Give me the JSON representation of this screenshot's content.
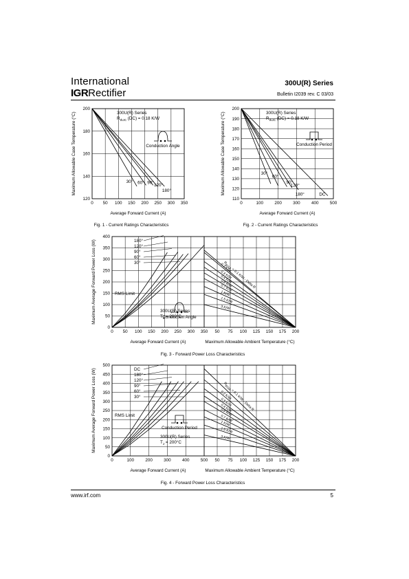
{
  "header": {
    "company_line1": "International",
    "company_logo": "IGR",
    "company_line2": "Rectifier",
    "series": "300U(R) Series",
    "bulletin": "Bulletin  I2039  rev. C  03/03"
  },
  "footer": {
    "url": "www.irf.com",
    "page": "5"
  },
  "chart_data": [
    {
      "type": "line",
      "caption": "Fig. 1 - Current Ratings Characteristics",
      "xlabel": "Average Forward Current (A)",
      "ylabel": "Maximum Allowable Case Temperature (°C)",
      "xlim": [
        0,
        350
      ],
      "ylim": [
        120,
        200
      ],
      "xticks": [
        0,
        50,
        100,
        150,
        200,
        250,
        300,
        350
      ],
      "yticks": [
        120,
        140,
        160,
        180,
        200
      ],
      "grid": true,
      "annotations": {
        "device": "300U(R) Series",
        "rth": "R",
        "rth_sub": "thJC",
        "rth_val": " (DC) = 0.18 K/W",
        "waveform": "Conduction Angle"
      },
      "series": [
        {
          "name": "30°",
          "x": [
            0,
            170
          ],
          "y": [
            200,
            131
          ]
        },
        {
          "name": "60°",
          "x": [
            0,
            205
          ],
          "y": [
            200,
            132
          ]
        },
        {
          "name": "90°",
          "x": [
            0,
            232
          ],
          "y": [
            200,
            132
          ]
        },
        {
          "name": "120°",
          "x": [
            0,
            248
          ],
          "y": [
            200,
            131
          ]
        },
        {
          "name": "180°",
          "x": [
            0,
            275
          ],
          "y": [
            200,
            131
          ]
        }
      ],
      "labels": [
        {
          "text": "30°",
          "x": 142,
          "y": 134
        },
        {
          "text": "60°",
          "x": 185,
          "y": 133
        },
        {
          "text": "90°",
          "x": 222,
          "y": 133
        },
        {
          "text": "120°",
          "x": 252,
          "y": 131
        },
        {
          "text": "180°",
          "x": 283,
          "y": 126
        }
      ]
    },
    {
      "type": "line",
      "caption": "Fig. 2 - Current Ratings Characteristics",
      "xlabel": "Average Forward Current (A)",
      "ylabel": "Maximum Allowable Case Temperature (°C)",
      "xlim": [
        0,
        500
      ],
      "ylim": [
        110,
        200
      ],
      "xticks": [
        0,
        100,
        200,
        300,
        400,
        500
      ],
      "yticks": [
        110,
        120,
        130,
        140,
        150,
        160,
        170,
        180,
        190,
        200
      ],
      "grid": true,
      "annotations": {
        "device": "300U(R) Series",
        "rth": "R",
        "rth_sub": "thJC",
        "rth_val": " (DC) = 0.18 K/W",
        "waveform": "Conduction Period"
      },
      "series": [
        {
          "name": "30°",
          "x": [
            0,
            160
          ],
          "y": [
            200,
            125
          ]
        },
        {
          "name": "60°",
          "x": [
            0,
            200
          ],
          "y": [
            200,
            123
          ]
        },
        {
          "name": "90°",
          "x": [
            0,
            248
          ],
          "y": [
            200,
            122
          ]
        },
        {
          "name": "120°",
          "x": [
            0,
            275
          ],
          "y": [
            200,
            121
          ]
        },
        {
          "name": "180°",
          "x": [
            0,
            310
          ],
          "y": [
            200,
            119
          ]
        },
        {
          "name": "DC",
          "x": [
            0,
            470
          ],
          "y": [
            200,
            113
          ]
        }
      ],
      "labels": [
        {
          "text": "30°",
          "x": 125,
          "y": 134
        },
        {
          "text": "60°",
          "x": 185,
          "y": 131
        },
        {
          "text": "90°",
          "x": 262,
          "y": 125
        },
        {
          "text": "120°",
          "x": 292,
          "y": 122
        },
        {
          "text": "180°",
          "x": 318,
          "y": 113
        },
        {
          "text": "DC",
          "x": 440,
          "y": 113
        }
      ]
    },
    {
      "type": "line",
      "caption": "Fig. 3 - Forward Power Loss Characteristics",
      "xlabel": "Average Forward Current (A)",
      "xlabel2": "Maximum Allowable Ambient Temperature (°C)",
      "ylabel": "Maximum Average Forward Power Loss (W)",
      "xlim": [
        0,
        350
      ],
      "ylim": [
        0,
        400
      ],
      "xlim2": [
        25,
        200
      ],
      "xticks": [
        0,
        50,
        100,
        150,
        200,
        250,
        300,
        350
      ],
      "xticks2": [
        50,
        75,
        100,
        125,
        150,
        175,
        200
      ],
      "yticks": [
        0,
        50,
        100,
        150,
        200,
        250,
        300,
        350,
        400
      ],
      "grid": true,
      "annotations": {
        "device": "300U(R) Series",
        "tj": "T",
        "tj_sub": "J",
        "tj_val": " = 200°C",
        "waveform": "Conduction Angle",
        "rms": "RMS Limit"
      },
      "legend_labels": [
        "180°",
        "120°",
        "90°",
        "60°",
        "30°"
      ],
      "series": [
        {
          "name": "180°",
          "x": [
            0,
            50,
            100,
            150,
            200,
            250,
            300,
            350
          ],
          "y": [
            0,
            38,
            82,
            130,
            182,
            238,
            298,
            362
          ]
        },
        {
          "name": "120°",
          "x": [
            0,
            50,
            100,
            150,
            200,
            250,
            290
          ],
          "y": [
            0,
            42,
            92,
            146,
            206,
            270,
            325
          ]
        },
        {
          "name": "90°",
          "x": [
            0,
            50,
            100,
            150,
            200,
            250,
            270
          ],
          "y": [
            0,
            45,
            98,
            158,
            222,
            292,
            322
          ]
        },
        {
          "name": "60°",
          "x": [
            0,
            50,
            100,
            150,
            200,
            250
          ],
          "y": [
            0,
            50,
            110,
            178,
            252,
            332
          ]
        },
        {
          "name": "30°",
          "x": [
            0,
            50,
            100,
            150,
            200,
            210
          ],
          "y": [
            0,
            62,
            138,
            222,
            312,
            330
          ]
        }
      ],
      "rth_lines": [
        {
          "label": "R",
          "label_sub": "thSA",
          "label_val": " = 0.1 K/W - Delta R",
          "t0": 25,
          "p0": 340
        },
        {
          "label": "0.2 K/W",
          "t0": 25,
          "p0": 330
        },
        {
          "label": "0.3 K/W",
          "t0": 25,
          "p0": 290
        },
        {
          "label": "0.4 K/W",
          "t0": 25,
          "p0": 265
        },
        {
          "label": "0.5 K/W",
          "t0": 25,
          "p0": 240
        },
        {
          "label": "0.7 K/W",
          "t0": 25,
          "p0": 215
        },
        {
          "label": "1 K/W",
          "t0": 25,
          "p0": 180
        },
        {
          "label": "1.5 K/W",
          "t0": 25,
          "p0": 145
        },
        {
          "label": "3 K/W",
          "t0": 25,
          "p0": 100
        }
      ]
    },
    {
      "type": "line",
      "caption": "Fig. 4 - Forward Power Loss Characteristics",
      "xlabel": "Average Forward Current (A)",
      "xlabel2": "Maximum Allowable Ambient Temperature (°C)",
      "ylabel": "Maximum Average Forward Power Loss (W)",
      "xlim": [
        0,
        500
      ],
      "ylim": [
        0,
        500
      ],
      "xlim2": [
        25,
        200
      ],
      "xticks": [
        0,
        100,
        200,
        300,
        400,
        500
      ],
      "xticks2": [
        50,
        75,
        100,
        125,
        150,
        175,
        200
      ],
      "yticks": [
        0,
        50,
        100,
        150,
        200,
        250,
        300,
        350,
        400,
        450,
        500
      ],
      "grid": true,
      "annotations": {
        "device": "300U(R) Series",
        "tj": "T",
        "tj_sub": "J",
        "tj_val": " = 200°C",
        "waveform": "Conduction Period",
        "rms": "RMS Limit"
      },
      "legend_labels": [
        "DC",
        "180°",
        "120°",
        "90°",
        "60°",
        "30°"
      ],
      "series": [
        {
          "name": "DC",
          "x": [
            0,
            100,
            200,
            300,
            400,
            470
          ],
          "y": [
            0,
            65,
            145,
            235,
            335,
            410
          ]
        },
        {
          "name": "180°",
          "x": [
            0,
            100,
            200,
            300,
            400,
            430
          ],
          "y": [
            0,
            75,
            165,
            265,
            375,
            410
          ]
        },
        {
          "name": "120°",
          "x": [
            0,
            100,
            200,
            300,
            390
          ],
          "y": [
            0,
            85,
            185,
            295,
            410
          ]
        },
        {
          "name": "90°",
          "x": [
            0,
            100,
            200,
            300,
            360
          ],
          "y": [
            0,
            95,
            205,
            325,
            410
          ]
        },
        {
          "name": "60°",
          "x": [
            0,
            100,
            200,
            300,
            320
          ],
          "y": [
            0,
            110,
            235,
            375,
            410
          ]
        },
        {
          "name": "30°",
          "x": [
            0,
            100,
            200,
            270
          ],
          "y": [
            0,
            135,
            290,
            410
          ]
        }
      ],
      "rth_lines": [
        {
          "label": "R",
          "label_sub": "thSA",
          "label_val": " = 0.1 K/W - Delta R",
          "t0": 25,
          "p0": 480
        },
        {
          "label": "0.2 K/W",
          "t0": 25,
          "p0": 420
        },
        {
          "label": "0.3 K/W",
          "t0": 25,
          "p0": 370
        },
        {
          "label": "0.4 K/W",
          "t0": 25,
          "p0": 330
        },
        {
          "label": "0.5 K/W",
          "t0": 25,
          "p0": 300
        },
        {
          "label": "0.7 K/W",
          "t0": 25,
          "p0": 255
        },
        {
          "label": "1 K/W",
          "t0": 25,
          "p0": 215
        },
        {
          "label": "1.5 K/W",
          "t0": 25,
          "p0": 170
        },
        {
          "label": "3 K/W",
          "t0": 25,
          "p0": 115
        }
      ]
    }
  ]
}
